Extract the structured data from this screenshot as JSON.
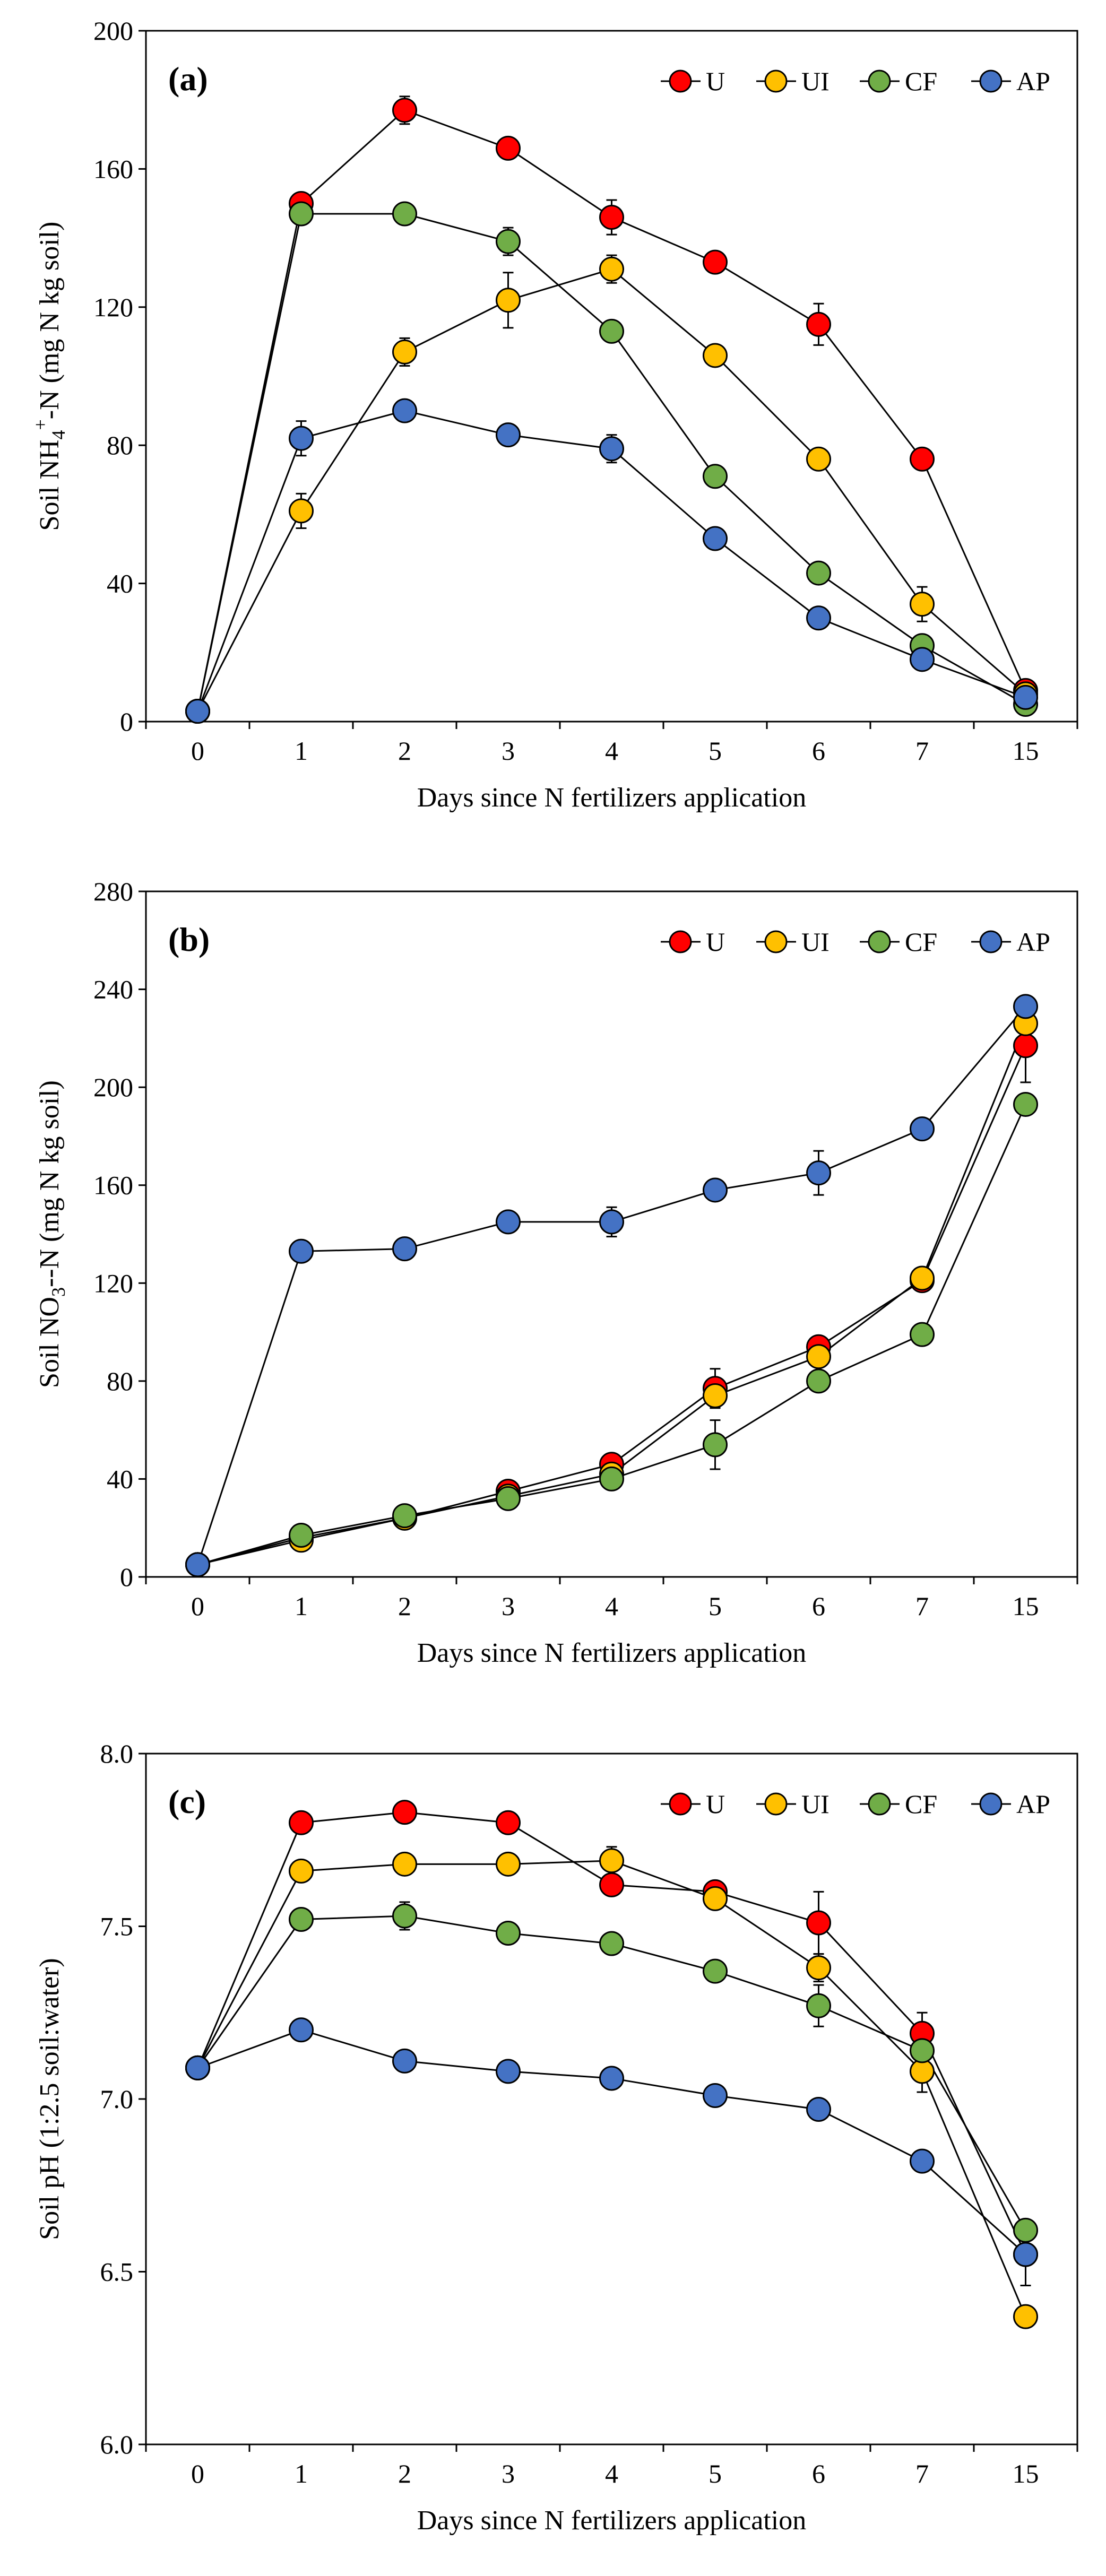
{
  "colors": {
    "U": "#ff0000",
    "UI": "#ffc000",
    "CF": "#70ad47",
    "AP": "#4472c4",
    "marker_stroke": "#000000",
    "axis": "#000000"
  },
  "chart_data": [
    {
      "type": "line",
      "panel_label": "(a)",
      "xlabel": "Days since N fertilizers application",
      "ylabel": "Soil  NH4+-N (mg N kg soil)",
      "ylabel_parts": [
        "Soil  NH",
        "4",
        "+",
        "-N (mg N kg soil)"
      ],
      "categories": [
        "0",
        "1",
        "2",
        "3",
        "4",
        "5",
        "6",
        "7",
        "15"
      ],
      "ylim": [
        0,
        200
      ],
      "yticks": [
        0,
        40,
        80,
        120,
        160,
        200
      ],
      "ytick_labels": [
        "0",
        "40",
        "80",
        "120",
        "160",
        "200"
      ],
      "legend_position": "top-right",
      "series": [
        {
          "name": "U",
          "values": [
            3,
            150,
            177,
            166,
            146,
            133,
            115,
            76,
            9
          ],
          "errors": [
            0,
            2,
            4,
            2,
            5,
            2,
            6,
            2,
            1
          ]
        },
        {
          "name": "UI",
          "values": [
            3,
            61,
            107,
            122,
            131,
            106,
            76,
            34,
            8
          ],
          "errors": [
            0,
            5,
            4,
            8,
            4,
            2,
            2,
            5,
            1
          ]
        },
        {
          "name": "CF",
          "values": [
            3,
            147,
            147,
            139,
            113,
            71,
            43,
            22,
            5
          ],
          "errors": [
            0,
            2,
            1,
            4,
            2,
            3,
            3,
            2,
            1
          ]
        },
        {
          "name": "AP",
          "values": [
            3,
            82,
            90,
            83,
            79,
            53,
            30,
            18,
            7
          ],
          "errors": [
            0,
            5,
            2,
            2,
            4,
            2,
            2,
            2,
            1
          ]
        }
      ]
    },
    {
      "type": "line",
      "panel_label": "(b)",
      "xlabel": "Days since N fertilizers application",
      "ylabel": "Soil  NO3--N (mg N kg soil)",
      "ylabel_parts": [
        "Soil  NO",
        "3",
        "",
        "--N (mg N kg soil)"
      ],
      "categories": [
        "0",
        "1",
        "2",
        "3",
        "4",
        "5",
        "6",
        "7",
        "15"
      ],
      "ylim": [
        0,
        280
      ],
      "yticks": [
        0,
        40,
        80,
        120,
        160,
        200,
        240,
        280
      ],
      "ytick_labels": [
        "0",
        "40",
        "80",
        "120",
        "160",
        "200",
        "240",
        "280"
      ],
      "legend_position": "top-right",
      "series": [
        {
          "name": "U",
          "values": [
            5,
            16,
            24,
            35,
            46,
            77,
            94,
            121,
            217
          ],
          "errors": [
            0,
            1,
            1,
            2,
            3,
            8,
            4,
            3,
            15
          ]
        },
        {
          "name": "UI",
          "values": [
            5,
            15,
            24,
            33,
            42,
            74,
            90,
            122,
            226
          ],
          "errors": [
            0,
            1,
            1,
            2,
            2,
            5,
            4,
            3,
            6
          ]
        },
        {
          "name": "CF",
          "values": [
            5,
            17,
            25,
            32,
            40,
            54,
            80,
            99,
            193
          ],
          "errors": [
            0,
            1,
            1,
            2,
            2,
            10,
            4,
            3,
            4
          ]
        },
        {
          "name": "AP",
          "values": [
            5,
            133,
            134,
            145,
            145,
            158,
            165,
            183,
            233
          ],
          "errors": [
            0,
            2,
            2,
            2,
            6,
            3,
            9,
            3,
            4
          ]
        }
      ]
    },
    {
      "type": "line",
      "panel_label": "(c)",
      "xlabel": "Days since N fertilizers application",
      "ylabel": "Soil pH (1:2.5 soil:water)",
      "ylabel_parts": [
        "Soil pH (1:2.5 soil:water)",
        "",
        "",
        ""
      ],
      "categories": [
        "0",
        "1",
        "2",
        "3",
        "4",
        "5",
        "6",
        "7",
        "15"
      ],
      "ylim": [
        6.0,
        8.0
      ],
      "yticks": [
        6.0,
        6.5,
        7.0,
        7.5,
        8.0
      ],
      "ytick_labels": [
        "6.0",
        "6.5",
        "7.0",
        "7.5",
        "8.0"
      ],
      "legend_position": "top-right",
      "series": [
        {
          "name": "U",
          "values": [
            7.09,
            7.8,
            7.83,
            7.8,
            7.62,
            7.6,
            7.51,
            7.19,
            6.55
          ],
          "errors": [
            0,
            0.01,
            0.01,
            0.01,
            0.01,
            0.01,
            0.09,
            0.06,
            0.03
          ]
        },
        {
          "name": "UI",
          "values": [
            7.09,
            7.66,
            7.68,
            7.68,
            7.69,
            7.58,
            7.38,
            7.08,
            6.37
          ],
          "errors": [
            0,
            0.03,
            0.01,
            0.01,
            0.04,
            0.01,
            0.04,
            0.06,
            0.03
          ]
        },
        {
          "name": "CF",
          "values": [
            7.09,
            7.52,
            7.53,
            7.48,
            7.45,
            7.37,
            7.27,
            7.14,
            6.62
          ],
          "errors": [
            0,
            0.01,
            0.04,
            0.01,
            0.01,
            0.01,
            0.06,
            0.03,
            0.01
          ]
        },
        {
          "name": "AP",
          "values": [
            7.09,
            7.2,
            7.11,
            7.08,
            7.06,
            7.01,
            6.97,
            6.82,
            6.55
          ],
          "errors": [
            0,
            0.01,
            0.01,
            0.01,
            0.01,
            0.01,
            0.01,
            0.01,
            0.09
          ]
        }
      ]
    }
  ]
}
